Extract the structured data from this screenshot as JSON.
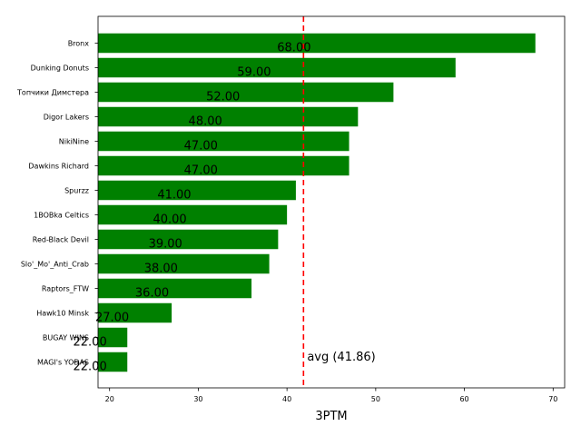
{
  "chart_data": {
    "type": "bar",
    "orientation": "horizontal",
    "title": "",
    "xlabel": "3PTM",
    "ylabel": "",
    "xlim": [
      18.7,
      71.3
    ],
    "xticks": [
      20,
      30,
      40,
      50,
      60,
      70
    ],
    "grid": false,
    "bar_color": "#008000",
    "categories": [
      "Bronx",
      "Dunking Donuts",
      "Топчики Димстера",
      "Digor Lakers",
      "NikiNine",
      "Dawkins Richard",
      "Spurzz",
      "1BOBka Celtics",
      "Red-Black Devil",
      "Slo'_Mo'_Anti_Crab",
      "Raptors_FTW",
      "Hawk10 Minsk",
      "BUGAY WINS",
      "MAGI's YODAS"
    ],
    "values": [
      68,
      59,
      52,
      48,
      47,
      47,
      41,
      40,
      39,
      38,
      36,
      27,
      22,
      22
    ],
    "value_labels": [
      "68.00",
      "59.00",
      "52.00",
      "48.00",
      "47.00",
      "47.00",
      "41.00",
      "40.00",
      "39.00",
      "38.00",
      "36.00",
      "27.00",
      "22.00",
      "22.00"
    ],
    "average": {
      "value": 41.86,
      "label": "avg (41.86)",
      "color": "#ff0000",
      "style": "dashed"
    }
  }
}
